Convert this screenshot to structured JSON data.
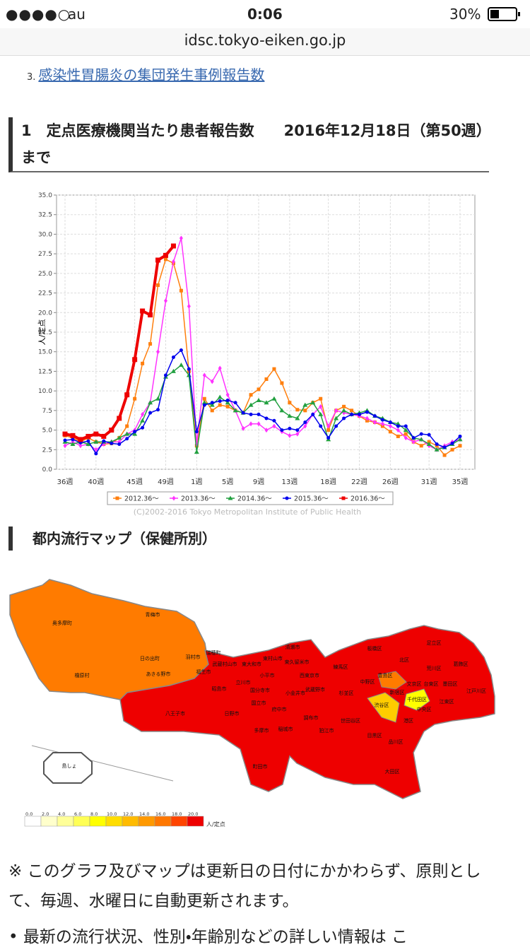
{
  "status_bar": {
    "carrier": "au",
    "time": "0:06",
    "battery": "30%"
  },
  "url": "idsc.tokyo-eiken.go.jp",
  "list": {
    "number": "3.",
    "link": "感染性胃腸炎の集団発生事例報告数"
  },
  "heading": "1　定点医療機関当たり患者報告数　　2016年12月18日（第50週）まで",
  "chart_data": {
    "type": "line",
    "ylabel": "人/定点",
    "credit": "(C)2002-2016 Tokyo Metropolitan Institute of Public Health",
    "categories": [
      "36週",
      null,
      null,
      null,
      "40週",
      null,
      null,
      null,
      null,
      "45週",
      null,
      null,
      null,
      "49週",
      null,
      null,
      null,
      "1週",
      null,
      null,
      null,
      "5週",
      null,
      null,
      null,
      "9週",
      null,
      null,
      null,
      "13週",
      null,
      null,
      null,
      null,
      "18週",
      null,
      null,
      null,
      "22週",
      null,
      null,
      null,
      "26週",
      null,
      null,
      null,
      null,
      "31週",
      null,
      null,
      null,
      "35週"
    ],
    "ylim": [
      0,
      35
    ],
    "yticks": [
      {
        "value": 0,
        "label": "0.0"
      },
      {
        "value": 2.5,
        "label": "2.5"
      },
      {
        "value": 5,
        "label": "5.0"
      },
      {
        "value": 7.5,
        "label": "7.5"
      },
      {
        "value": 10,
        "label": "10.0"
      },
      {
        "value": 12.5,
        "label": "12.5"
      },
      {
        "value": 15,
        "label": "15.0"
      },
      {
        "value": 17.5,
        "label": "17.5"
      },
      {
        "value": 20,
        "label": "20.0"
      },
      {
        "value": 22.5,
        "label": "22.5"
      },
      {
        "value": 25,
        "label": "25.0"
      },
      {
        "value": 27.5,
        "label": "27.5"
      },
      {
        "value": 30,
        "label": "30.0"
      },
      {
        "value": 32.5,
        "label": "32.5"
      },
      {
        "value": 35,
        "label": "35.0"
      }
    ],
    "grid": true,
    "series": [
      {
        "name": "2012.36～",
        "color": "#ff7f0e",
        "marker": "square",
        "width": 1.5,
        "values": [
          4.3,
          4.0,
          3.5,
          4.0,
          3.5,
          3.2,
          3.3,
          4.0,
          5.5,
          9.0,
          13.5,
          16.0,
          23.5,
          26.8,
          26.3,
          22.8,
          12.5,
          3.0,
          9.0,
          7.5,
          8.2,
          8.0,
          7.5,
          7.2,
          9.5,
          10.2,
          11.5,
          12.8,
          11.0,
          8.5,
          7.6,
          7.5,
          8.5,
          9.0,
          5.0,
          7.5,
          8.0,
          7.5,
          6.8,
          6.2,
          6.0,
          5.5,
          4.8,
          4.2,
          4.5,
          3.5,
          3.0,
          3.5,
          3.0,
          1.8,
          2.5,
          3.0
        ]
      },
      {
        "name": "2013.36～",
        "color": "#ff33ff",
        "marker": "diamond",
        "width": 1.5,
        "values": [
          3.0,
          3.5,
          3.0,
          3.2,
          2.5,
          3.2,
          3.5,
          3.5,
          4.5,
          5.0,
          7.0,
          8.5,
          15.0,
          21.5,
          26.5,
          29.5,
          20.8,
          3.2,
          12.0,
          11.2,
          12.9,
          9.5,
          7.5,
          5.2,
          5.8,
          5.8,
          5.0,
          5.5,
          4.8,
          4.3,
          4.5,
          5.5,
          7.0,
          8.0,
          5.5,
          7.5,
          7.2,
          7.0,
          6.8,
          6.5,
          6.0,
          5.8,
          5.5,
          5.0,
          4.0,
          3.5,
          3.8,
          3.0,
          2.5,
          3.0,
          3.5,
          3.8
        ]
      },
      {
        "name": "2014.36～",
        "color": "#22a040",
        "marker": "triangle",
        "width": 1.5,
        "values": [
          3.5,
          3.2,
          3.5,
          3.2,
          3.5,
          3.5,
          3.5,
          4.0,
          4.5,
          4.5,
          6.2,
          8.5,
          9.0,
          11.8,
          12.5,
          13.3,
          12.0,
          2.2,
          8.5,
          8.2,
          9.2,
          8.5,
          7.5,
          7.2,
          8.2,
          8.8,
          8.5,
          9.0,
          7.5,
          6.8,
          6.5,
          8.2,
          8.5,
          7.0,
          3.8,
          6.5,
          7.5,
          7.0,
          7.2,
          7.5,
          6.8,
          6.5,
          6.0,
          5.8,
          5.0,
          4.0,
          3.8,
          3.2,
          2.5,
          2.8,
          3.2,
          3.8
        ]
      },
      {
        "name": "2015.36～",
        "color": "#0000ee",
        "marker": "circle",
        "width": 1.5,
        "values": [
          3.7,
          3.8,
          3.4,
          3.6,
          2.0,
          3.6,
          3.3,
          3.2,
          3.9,
          4.8,
          5.3,
          7.2,
          7.6,
          12.0,
          14.3,
          15.2,
          12.8,
          4.8,
          8.2,
          8.5,
          8.7,
          8.8,
          8.5,
          7.2,
          7.0,
          7.0,
          6.5,
          6.2,
          5.0,
          5.2,
          5.0,
          6.0,
          7.0,
          5.5,
          4.0,
          5.5,
          6.5,
          7.0,
          7.0,
          7.3,
          6.8,
          6.3,
          6.0,
          5.5,
          5.5,
          4.0,
          4.5,
          4.4,
          3.2,
          2.8,
          3.3,
          4.2
        ]
      },
      {
        "name": "2016.36～",
        "color": "#ee0000",
        "marker": "square",
        "width": 4,
        "values": [
          4.5,
          4.3,
          3.8,
          4.2,
          4.5,
          4.2,
          5.0,
          6.5,
          9.5,
          14.0,
          20.2,
          19.7,
          26.7,
          27.3,
          28.5,
          null,
          null,
          null,
          null,
          null,
          null,
          null,
          null,
          null,
          null,
          null,
          null,
          null,
          null,
          null,
          null,
          null,
          null,
          null,
          null,
          null,
          null,
          null,
          null,
          null,
          null,
          null,
          null,
          null,
          null,
          null,
          null,
          null,
          null,
          null,
          null,
          null
        ]
      }
    ]
  },
  "map": {
    "title": "都内流行マップ（保健所別）",
    "regions": [
      "奥多摩町",
      "青梅市",
      "日の出町",
      "羽村市",
      "瑞穂町",
      "檜原村",
      "あきる野市",
      "福生市",
      "武蔵村山市",
      "東大和市",
      "清瀬市",
      "東村山市",
      "東久留米市",
      "小平市",
      "西東京市",
      "立川市",
      "昭島市",
      "国分寺市",
      "小金井市",
      "武蔵野市",
      "練馬区",
      "杉並区",
      "板橋区",
      "北区",
      "足立区",
      "葛飾区",
      "荒川区",
      "豊島区",
      "文京区",
      "台東区",
      "墨田区",
      "江戸川区",
      "江東区",
      "新宿区",
      "中野区",
      "千代田区",
      "中央区",
      "渋谷区",
      "港区",
      "世田谷区",
      "目黒区",
      "品川区",
      "大田区",
      "八王子市",
      "日野市",
      "府中市",
      "国立市",
      "調布市",
      "狛江市",
      "稲城市",
      "多摩市",
      "町田市",
      "島しょ"
    ],
    "scale": {
      "labels": [
        "0.0",
        "2.0",
        "4.0",
        "6.0",
        "8.0",
        "10.0",
        "12.0",
        "14.0",
        "16.0",
        "18.0",
        "20.0"
      ],
      "colors": [
        "#ffffff",
        "#ffffcc",
        "#ffff99",
        "#ffff55",
        "#ffff00",
        "#ffdd00",
        "#ffbb00",
        "#ff9900",
        "#ff7700",
        "#ff4400",
        "#ee0000"
      ],
      "unit": "人/定点"
    }
  },
  "note": "※ このグラフ及びマップは更新日の日付にかかわらず、原則として、毎週、水曜日に自動更新されます。",
  "bullet": "最新の流行状況、性別・年齢別などの詳しい情報は こ"
}
